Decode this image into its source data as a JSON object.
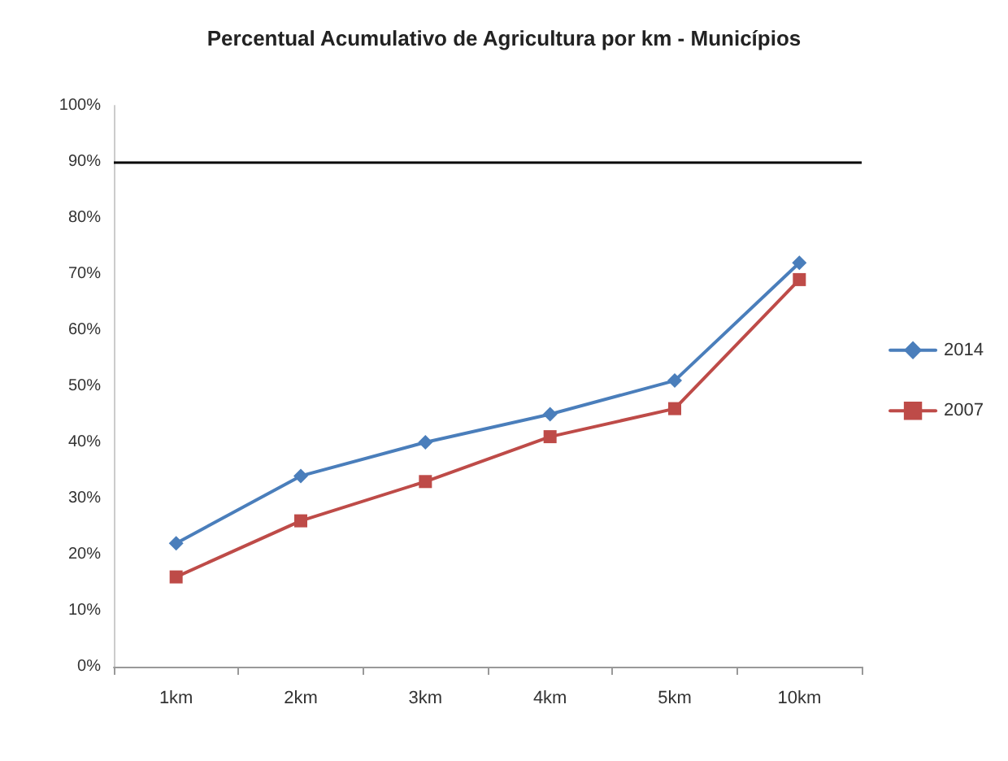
{
  "chart_data": {
    "type": "line",
    "title": "Percentual Acumulativo de Agricultura por km - Municípios",
    "categories": [
      "1km",
      "2km",
      "3km",
      "4km",
      "5km",
      "10km"
    ],
    "series": [
      {
        "name": "2014",
        "color": "#4a7ebb",
        "marker": "diamond",
        "values": [
          22,
          34,
          40,
          45,
          51,
          72
        ]
      },
      {
        "name": "2007",
        "color": "#be4b48",
        "marker": "square",
        "values": [
          16,
          26,
          33,
          41,
          46,
          69
        ]
      }
    ],
    "ylim": [
      0,
      100
    ],
    "yticks": [
      {
        "value": 0,
        "label": "0%"
      },
      {
        "value": 10,
        "label": "10%"
      },
      {
        "value": 20,
        "label": "20%"
      },
      {
        "value": 30,
        "label": "30%"
      },
      {
        "value": 40,
        "label": "40%"
      },
      {
        "value": 50,
        "label": "50%"
      },
      {
        "value": 60,
        "label": "60%"
      },
      {
        "value": 70,
        "label": "70%"
      },
      {
        "value": 80,
        "label": "80%"
      },
      {
        "value": 90,
        "label": "90%"
      },
      {
        "value": 100,
        "label": "100%"
      }
    ],
    "ref_lines": [
      {
        "axis": "y",
        "value": 90,
        "color": "#000000"
      }
    ],
    "grid": false,
    "legend": "right"
  }
}
